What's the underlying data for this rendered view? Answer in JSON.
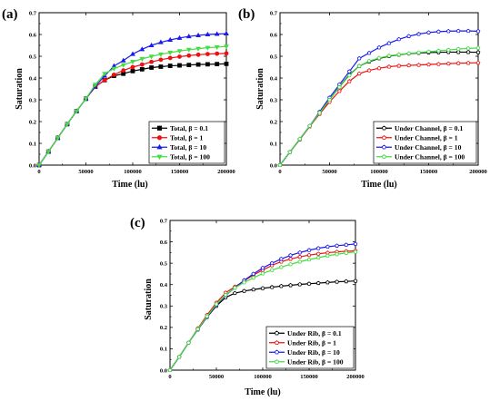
{
  "figure": {
    "panels": [
      {
        "label": "(a)",
        "chart_data": {
          "type": "line",
          "xlabel": "Time (lu)",
          "ylabel": "Saturation",
          "xlim": [
            0,
            200000
          ],
          "ylim": [
            0,
            0.7
          ],
          "xticks": [
            0,
            50000,
            100000,
            150000,
            200000
          ],
          "xtick_labels": [
            "0",
            "50000",
            "100000",
            "150000",
            "200000"
          ],
          "yticks": [
            0,
            0.1,
            0.2,
            0.3,
            0.4,
            0.5,
            0.6,
            0.7
          ],
          "ytick_labels": [
            "0.0",
            "0.1",
            "0.2",
            "0.3",
            "0.4",
            "0.5",
            "0.6",
            "0.7"
          ],
          "grid": false,
          "legend_position": "bottom-right",
          "x": [
            0,
            10000,
            20000,
            30000,
            40000,
            50000,
            60000,
            70000,
            80000,
            90000,
            100000,
            110000,
            120000,
            130000,
            140000,
            150000,
            160000,
            170000,
            180000,
            190000,
            200000
          ],
          "series": [
            {
              "name": "Total, β = 0.1",
              "color": "#000000",
              "marker": "square",
              "filled": true,
              "values": [
                0.0,
                0.062,
                0.125,
                0.188,
                0.248,
                0.305,
                0.36,
                0.39,
                0.41,
                0.42,
                0.432,
                0.44,
                0.448,
                0.452,
                0.456,
                0.458,
                0.46,
                0.462,
                0.463,
                0.464,
                0.465
              ]
            },
            {
              "name": "Total, β = 1",
              "color": "#ee1111",
              "marker": "circle",
              "filled": true,
              "values": [
                0.0,
                0.062,
                0.125,
                0.188,
                0.248,
                0.305,
                0.36,
                0.39,
                0.415,
                0.435,
                0.45,
                0.462,
                0.474,
                0.484,
                0.492,
                0.498,
                0.503,
                0.507,
                0.51,
                0.512,
                0.513
              ]
            },
            {
              "name": "Total, β = 10",
              "color": "#1a1aee",
              "marker": "triangle",
              "filled": true,
              "values": [
                0.0,
                0.062,
                0.125,
                0.188,
                0.248,
                0.305,
                0.362,
                0.41,
                0.455,
                0.48,
                0.51,
                0.532,
                0.55,
                0.564,
                0.575,
                0.584,
                0.591,
                0.596,
                0.6,
                0.602,
                0.604
              ]
            },
            {
              "name": "Total, β = 100",
              "color": "#44dd44",
              "marker": "triangle-down",
              "filled": true,
              "values": [
                0.0,
                0.062,
                0.125,
                0.188,
                0.248,
                0.305,
                0.37,
                0.42,
                0.443,
                0.46,
                0.475,
                0.488,
                0.499,
                0.509,
                0.517,
                0.524,
                0.53,
                0.535,
                0.539,
                0.542,
                0.545
              ]
            }
          ]
        }
      },
      {
        "label": "(b)",
        "chart_data": {
          "type": "line",
          "xlabel": "Time (lu)",
          "ylabel": "Saturation",
          "xlim": [
            0,
            200000
          ],
          "ylim": [
            0,
            0.7
          ],
          "xticks": [
            0,
            50000,
            100000,
            150000,
            200000
          ],
          "xtick_labels": [
            "0",
            "50000",
            "100000",
            "150000",
            "200000"
          ],
          "yticks": [
            0,
            0.1,
            0.2,
            0.3,
            0.4,
            0.5,
            0.6,
            0.7
          ],
          "ytick_labels": [
            "0.0",
            "0.1",
            "0.2",
            "0.3",
            "0.4",
            "0.5",
            "0.6",
            "0.7"
          ],
          "grid": false,
          "legend_position": "bottom-right",
          "x": [
            0,
            10000,
            20000,
            30000,
            40000,
            50000,
            60000,
            70000,
            80000,
            90000,
            100000,
            110000,
            120000,
            130000,
            140000,
            150000,
            160000,
            170000,
            180000,
            190000,
            200000
          ],
          "series": [
            {
              "name": "Under Channel, β = 0.1",
              "color": "#000000",
              "marker": "pentagon",
              "filled": false,
              "values": [
                0.0,
                0.06,
                0.118,
                0.178,
                0.238,
                0.3,
                0.36,
                0.415,
                0.455,
                0.475,
                0.49,
                0.5,
                0.507,
                0.512,
                0.515,
                0.517,
                0.518,
                0.519,
                0.519,
                0.519,
                0.518
              ]
            },
            {
              "name": "Under Channel, β = 1",
              "color": "#ee1111",
              "marker": "pentagon",
              "filled": false,
              "values": [
                0.0,
                0.06,
                0.118,
                0.178,
                0.235,
                0.29,
                0.34,
                0.385,
                0.42,
                0.435,
                0.445,
                0.452,
                0.456,
                0.458,
                0.46,
                0.462,
                0.464,
                0.466,
                0.468,
                0.469,
                0.47
              ]
            },
            {
              "name": "Under Channel, β = 10",
              "color": "#1a1aee",
              "marker": "pentagon",
              "filled": false,
              "values": [
                0.0,
                0.06,
                0.12,
                0.18,
                0.245,
                0.31,
                0.37,
                0.43,
                0.49,
                0.515,
                0.54,
                0.56,
                0.578,
                0.592,
                0.602,
                0.609,
                0.613,
                0.615,
                0.616,
                0.616,
                0.615
              ]
            },
            {
              "name": "Under Channel, β = 100",
              "color": "#44dd44",
              "marker": "pentagon",
              "filled": false,
              "values": [
                0.0,
                0.06,
                0.12,
                0.18,
                0.24,
                0.3,
                0.358,
                0.412,
                0.455,
                0.478,
                0.492,
                0.502,
                0.508,
                0.513,
                0.517,
                0.521,
                0.525,
                0.529,
                0.533,
                0.536,
                0.538
              ]
            }
          ]
        }
      },
      {
        "label": "(c)",
        "chart_data": {
          "type": "line",
          "xlabel": "Time (lu)",
          "ylabel": "Saturation",
          "xlim": [
            0,
            200000
          ],
          "ylim": [
            0,
            0.7
          ],
          "xticks": [
            0,
            50000,
            100000,
            150000,
            200000
          ],
          "xtick_labels": [
            "0",
            "50000",
            "100000",
            "150000",
            "200000"
          ],
          "yticks": [
            0,
            0.1,
            0.2,
            0.3,
            0.4,
            0.5,
            0.6,
            0.7
          ],
          "ytick_labels": [
            "0.0",
            "0.1",
            "0.2",
            "0.3",
            "0.4",
            "0.5",
            "0.6",
            "0.7"
          ],
          "grid": false,
          "legend_position": "bottom-right",
          "x": [
            0,
            10000,
            20000,
            30000,
            40000,
            50000,
            60000,
            70000,
            80000,
            90000,
            100000,
            110000,
            120000,
            130000,
            140000,
            150000,
            160000,
            170000,
            180000,
            190000,
            200000
          ],
          "series": [
            {
              "name": "Under Rib, β = 0.1",
              "color": "#000000",
              "marker": "pentagon",
              "filled": false,
              "values": [
                0.0,
                0.062,
                0.128,
                0.19,
                0.248,
                0.3,
                0.34,
                0.36,
                0.37,
                0.377,
                0.383,
                0.388,
                0.393,
                0.397,
                0.401,
                0.404,
                0.407,
                0.41,
                0.413,
                0.415,
                0.417
              ]
            },
            {
              "name": "Under Rib, β = 1",
              "color": "#ee1111",
              "marker": "pentagon",
              "filled": false,
              "values": [
                0.0,
                0.062,
                0.128,
                0.195,
                0.258,
                0.315,
                0.362,
                0.39,
                0.418,
                0.445,
                0.468,
                0.49,
                0.507,
                0.52,
                0.53,
                0.538,
                0.544,
                0.549,
                0.553,
                0.556,
                0.558
              ]
            },
            {
              "name": "Under Rib, β = 10",
              "color": "#1a1aee",
              "marker": "pentagon",
              "filled": false,
              "values": [
                0.0,
                0.062,
                0.128,
                0.19,
                0.25,
                0.305,
                0.35,
                0.385,
                0.42,
                0.45,
                0.478,
                0.5,
                0.52,
                0.537,
                0.55,
                0.561,
                0.57,
                0.577,
                0.582,
                0.586,
                0.59
              ]
            },
            {
              "name": "Under Rib, β = 100",
              "color": "#44dd44",
              "marker": "pentagon",
              "filled": false,
              "values": [
                0.0,
                0.062,
                0.128,
                0.192,
                0.252,
                0.308,
                0.352,
                0.385,
                0.41,
                0.432,
                0.452,
                0.468,
                0.482,
                0.495,
                0.507,
                0.517,
                0.526,
                0.535,
                0.542,
                0.548,
                0.553
              ]
            }
          ]
        }
      }
    ]
  }
}
